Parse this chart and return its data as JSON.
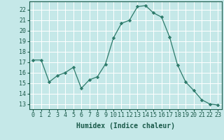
{
  "x": [
    0,
    1,
    2,
    3,
    4,
    5,
    6,
    7,
    8,
    9,
    10,
    11,
    12,
    13,
    14,
    15,
    16,
    17,
    18,
    19,
    20,
    21,
    22,
    23
  ],
  "y": [
    17.2,
    17.2,
    15.1,
    15.7,
    16.0,
    16.5,
    14.5,
    15.3,
    15.6,
    16.8,
    19.3,
    20.7,
    21.0,
    22.3,
    22.4,
    21.7,
    21.3,
    19.4,
    16.7,
    15.1,
    14.3,
    13.4,
    13.0,
    12.9
  ],
  "line_color": "#2d7a6a",
  "marker": "D",
  "marker_size": 2.2,
  "bg_color": "#c5e8e8",
  "grid_color": "#ffffff",
  "tick_color": "#1a5a4a",
  "label_color": "#1a5a4a",
  "xlabel": "Humidex (Indice chaleur)",
  "ylim": [
    12.5,
    22.8
  ],
  "xlim": [
    -0.5,
    23.5
  ],
  "yticks": [
    13,
    14,
    15,
    16,
    17,
    18,
    19,
    20,
    21,
    22
  ],
  "xticks": [
    0,
    1,
    2,
    3,
    4,
    5,
    6,
    7,
    8,
    9,
    10,
    11,
    12,
    13,
    14,
    15,
    16,
    17,
    18,
    19,
    20,
    21,
    22,
    23
  ],
  "font_size": 6.0,
  "xlabel_font_size": 7.0
}
